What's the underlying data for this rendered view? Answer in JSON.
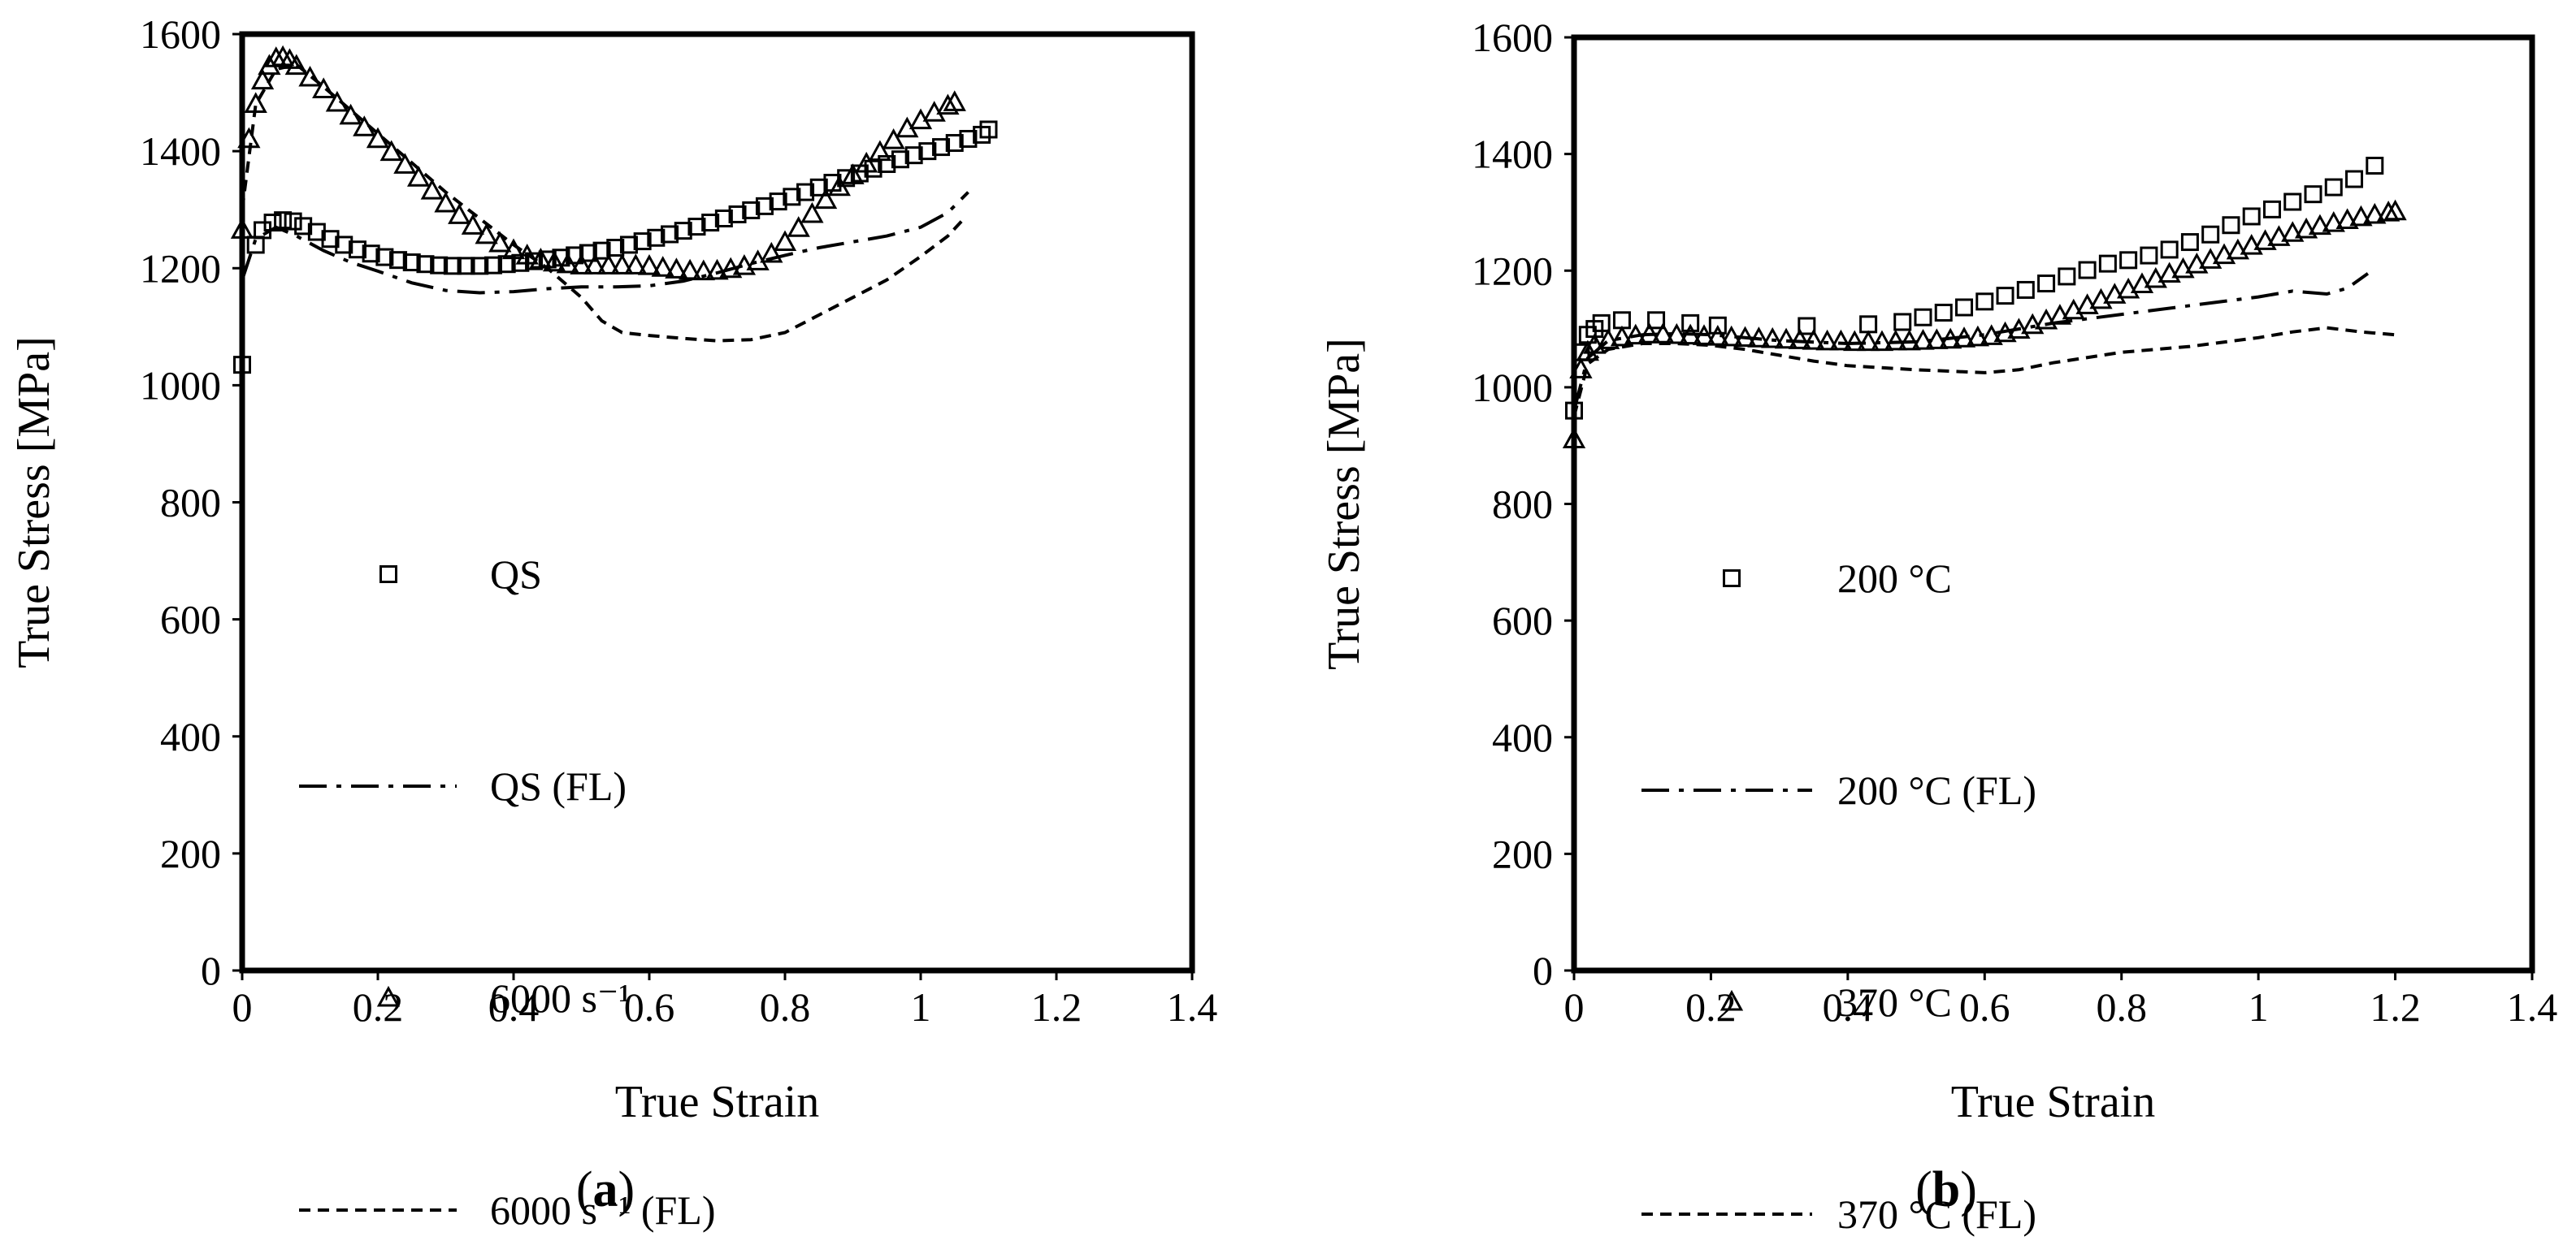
{
  "chart_data": [
    {
      "type": "scatter",
      "panel": "(a)",
      "caption_letter": "a",
      "xlabel": "True Strain",
      "ylabel": "True Stress [MPa]",
      "xlim": [
        0,
        1.4
      ],
      "ylim": [
        0,
        1600
      ],
      "xticks": [
        "0",
        "0.2",
        "0.4",
        "0.6",
        "0.8",
        "1",
        "1.2",
        "1.4"
      ],
      "yticks": [
        "0",
        "200",
        "400",
        "600",
        "800",
        "1000",
        "1200",
        "1400",
        "1600"
      ],
      "legend_position": "center-left",
      "series": [
        {
          "name": "QS",
          "kind": "markers",
          "marker": "square",
          "x": [
            0.0,
            0.02,
            0.03,
            0.045,
            0.06,
            0.075,
            0.09,
            0.11,
            0.13,
            0.15,
            0.17,
            0.19,
            0.21,
            0.23,
            0.25,
            0.27,
            0.29,
            0.31,
            0.33,
            0.35,
            0.37,
            0.39,
            0.41,
            0.43,
            0.45,
            0.47,
            0.49,
            0.51,
            0.53,
            0.55,
            0.57,
            0.59,
            0.61,
            0.63,
            0.65,
            0.67,
            0.69,
            0.71,
            0.73,
            0.75,
            0.77,
            0.79,
            0.81,
            0.83,
            0.85,
            0.87,
            0.89,
            0.91,
            0.93,
            0.95,
            0.97,
            0.99,
            1.01,
            1.03,
            1.05,
            1.07,
            1.09,
            1.1
          ],
          "y": [
            1035,
            1240,
            1265,
            1278,
            1282,
            1280,
            1272,
            1262,
            1250,
            1240,
            1232,
            1225,
            1219,
            1214,
            1210,
            1207,
            1205,
            1204,
            1204,
            1204,
            1205,
            1207,
            1209,
            1212,
            1215,
            1218,
            1222,
            1226,
            1230,
            1235,
            1240,
            1246,
            1252,
            1258,
            1264,
            1271,
            1278,
            1285,
            1292,
            1299,
            1306,
            1314,
            1322,
            1330,
            1338,
            1346,
            1354,
            1362,
            1370,
            1378,
            1386,
            1393,
            1400,
            1407,
            1414,
            1421,
            1428,
            1437
          ]
        },
        {
          "name": "QS (FL)",
          "kind": "line",
          "dash": "dashdot",
          "x": [
            0.0,
            0.02,
            0.05,
            0.08,
            0.12,
            0.16,
            0.2,
            0.25,
            0.3,
            0.35,
            0.4,
            0.45,
            0.5,
            0.55,
            0.6,
            0.65,
            0.7,
            0.75,
            0.8,
            0.85,
            0.9,
            0.95,
            1.0,
            1.04,
            1.07
          ],
          "y": [
            1180,
            1250,
            1270,
            1255,
            1230,
            1210,
            1195,
            1175,
            1162,
            1158,
            1160,
            1165,
            1168,
            1168,
            1170,
            1178,
            1192,
            1208,
            1222,
            1235,
            1245,
            1255,
            1270,
            1295,
            1330
          ]
        },
        {
          "name": "6000 s⁻¹",
          "kind": "markers",
          "marker": "triangle",
          "x": [
            0.0,
            0.01,
            0.02,
            0.03,
            0.04,
            0.05,
            0.06,
            0.07,
            0.08,
            0.1,
            0.12,
            0.14,
            0.16,
            0.18,
            0.2,
            0.22,
            0.24,
            0.26,
            0.28,
            0.3,
            0.32,
            0.34,
            0.36,
            0.38,
            0.4,
            0.42,
            0.44,
            0.46,
            0.48,
            0.5,
            0.52,
            0.54,
            0.56,
            0.58,
            0.6,
            0.62,
            0.64,
            0.66,
            0.68,
            0.7,
            0.72,
            0.74,
            0.76,
            0.78,
            0.8,
            0.82,
            0.84,
            0.86,
            0.88,
            0.9,
            0.92,
            0.94,
            0.96,
            0.98,
            1.0,
            1.02,
            1.04,
            1.05
          ],
          "y": [
            1265,
            1420,
            1480,
            1520,
            1545,
            1558,
            1560,
            1555,
            1545,
            1525,
            1505,
            1482,
            1460,
            1440,
            1420,
            1398,
            1376,
            1354,
            1332,
            1310,
            1290,
            1272,
            1256,
            1242,
            1230,
            1221,
            1214,
            1209,
            1206,
            1204,
            1204,
            1204,
            1204,
            1204,
            1203,
            1200,
            1197,
            1195,
            1194,
            1195,
            1198,
            1203,
            1211,
            1224,
            1244,
            1268,
            1292,
            1316,
            1338,
            1358,
            1378,
            1398,
            1418,
            1438,
            1452,
            1465,
            1477,
            1483
          ]
        },
        {
          "name": "6000 s⁻¹ (FL)",
          "kind": "line",
          "dash": "dashed",
          "x": [
            0.0,
            0.02,
            0.05,
            0.08,
            0.12,
            0.16,
            0.2,
            0.25,
            0.3,
            0.35,
            0.4,
            0.45,
            0.5,
            0.53,
            0.56,
            0.6,
            0.65,
            0.7,
            0.75,
            0.8,
            0.85,
            0.9,
            0.95,
            1.0,
            1.04,
            1.06
          ],
          "y": [
            1300,
            1480,
            1540,
            1548,
            1510,
            1470,
            1430,
            1380,
            1330,
            1285,
            1240,
            1200,
            1150,
            1110,
            1090,
            1085,
            1080,
            1076,
            1078,
            1090,
            1120,
            1150,
            1180,
            1220,
            1255,
            1280
          ]
        }
      ]
    },
    {
      "type": "scatter",
      "panel": "(b)",
      "caption_letter": "b",
      "xlabel": "True Strain",
      "ylabel": "True Stress [MPa]",
      "xlim": [
        0,
        1.4
      ],
      "ylim": [
        0,
        1600
      ],
      "xticks": [
        "0",
        "0.2",
        "0.4",
        "0.6",
        "0.8",
        "1",
        "1.2",
        "1.4"
      ],
      "yticks": [
        "0",
        "200",
        "400",
        "600",
        "800",
        "1000",
        "1200",
        "1400",
        "1600"
      ],
      "legend_position": "center-left",
      "series": [
        {
          "name": "200 °C",
          "kind": "markers",
          "marker": "square",
          "x": [
            0.0,
            0.01,
            0.02,
            0.03,
            0.04,
            0.07,
            0.12,
            0.17,
            0.21,
            0.34,
            0.43,
            0.48,
            0.51,
            0.54,
            0.57,
            0.6,
            0.63,
            0.66,
            0.69,
            0.72,
            0.75,
            0.78,
            0.81,
            0.84,
            0.87,
            0.9,
            0.93,
            0.96,
            0.99,
            1.02,
            1.05,
            1.08,
            1.11,
            1.14,
            1.17
          ],
          "y": [
            960,
            1060,
            1090,
            1100,
            1110,
            1115,
            1115,
            1110,
            1106,
            1105,
            1108,
            1112,
            1120,
            1128,
            1137,
            1147,
            1157,
            1167,
            1178,
            1190,
            1201,
            1212,
            1218,
            1226,
            1236,
            1249,
            1262,
            1278,
            1293,
            1305,
            1318,
            1331,
            1343,
            1357,
            1380
          ]
        },
        {
          "name": "200 °C (FL)",
          "kind": "line",
          "dash": "dashdot",
          "x": [
            0.0,
            0.02,
            0.05,
            0.1,
            0.15,
            0.2,
            0.3,
            0.4,
            0.5,
            0.6,
            0.7,
            0.8,
            0.9,
            1.0,
            1.05,
            1.1,
            1.13,
            1.16
          ],
          "y": [
            960,
            1050,
            1080,
            1090,
            1092,
            1090,
            1080,
            1075,
            1078,
            1090,
            1110,
            1125,
            1140,
            1155,
            1165,
            1160,
            1170,
            1195
          ]
        },
        {
          "name": "370 °C",
          "kind": "markers",
          "marker": "triangle",
          "x": [
            0.0,
            0.01,
            0.02,
            0.03,
            0.05,
            0.07,
            0.09,
            0.11,
            0.13,
            0.15,
            0.17,
            0.19,
            0.21,
            0.23,
            0.25,
            0.27,
            0.29,
            0.31,
            0.33,
            0.35,
            0.37,
            0.39,
            0.41,
            0.43,
            0.45,
            0.47,
            0.49,
            0.51,
            0.53,
            0.55,
            0.57,
            0.59,
            0.61,
            0.63,
            0.65,
            0.67,
            0.69,
            0.71,
            0.73,
            0.75,
            0.77,
            0.79,
            0.81,
            0.83,
            0.85,
            0.87,
            0.89,
            0.91,
            0.93,
            0.95,
            0.97,
            0.99,
            1.01,
            1.03,
            1.05,
            1.07,
            1.09,
            1.11,
            1.13,
            1.15,
            1.17,
            1.19,
            1.2
          ],
          "y": [
            910,
            1030,
            1060,
            1072,
            1080,
            1085,
            1088,
            1090,
            1090,
            1089,
            1088,
            1087,
            1086,
            1085,
            1084,
            1083,
            1082,
            1081,
            1080,
            1079,
            1078,
            1078,
            1077,
            1077,
            1077,
            1078,
            1078,
            1079,
            1080,
            1081,
            1083,
            1085,
            1087,
            1092,
            1098,
            1106,
            1114,
            1122,
            1131,
            1140,
            1149,
            1158,
            1167,
            1176,
            1185,
            1194,
            1202,
            1210,
            1218,
            1226,
            1234,
            1242,
            1250,
            1257,
            1264,
            1270,
            1276,
            1281,
            1286,
            1291,
            1295,
            1299,
            1301
          ]
        },
        {
          "name": "370 °C (FL)",
          "kind": "line",
          "dash": "dashed",
          "x": [
            0.0,
            0.02,
            0.05,
            0.1,
            0.15,
            0.2,
            0.25,
            0.3,
            0.35,
            0.4,
            0.5,
            0.6,
            0.65,
            0.7,
            0.8,
            0.9,
            1.0,
            1.05,
            1.1,
            1.15,
            1.2
          ],
          "y": [
            950,
            1040,
            1065,
            1075,
            1075,
            1072,
            1065,
            1055,
            1045,
            1037,
            1030,
            1025,
            1030,
            1042,
            1060,
            1070,
            1085,
            1095,
            1102,
            1095,
            1090
          ]
        }
      ]
    }
  ]
}
